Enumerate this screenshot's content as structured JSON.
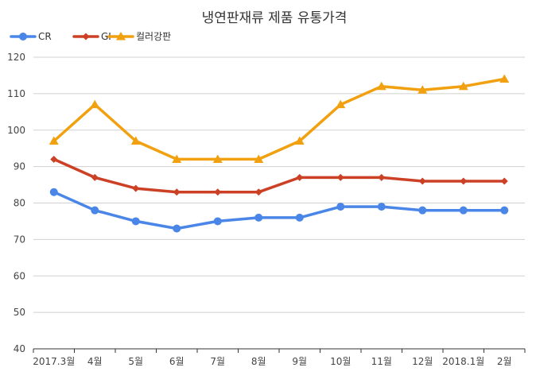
{
  "chart_data": {
    "type": "line",
    "title": "냉연판재류 제품 유통가격",
    "categories": [
      "2017.3월",
      "4월",
      "5월",
      "6월",
      "7월",
      "8월",
      "9월",
      "10월",
      "11월",
      "12월",
      "2018.1월",
      "2월"
    ],
    "series": [
      {
        "name": "CR",
        "color": "#4a86e8",
        "marker": "circle",
        "values": [
          83,
          78,
          75,
          73,
          75,
          76,
          76,
          79,
          79,
          78,
          78,
          78
        ]
      },
      {
        "name": "GI",
        "color": "#cc4125",
        "marker": "diamond",
        "values": [
          92,
          87,
          84,
          83,
          83,
          83,
          87,
          87,
          87,
          86,
          86,
          86
        ]
      },
      {
        "name": "컬러강판",
        "color": "#f1a10f",
        "marker": "triangle",
        "values": [
          97,
          107,
          97,
          92,
          92,
          92,
          97,
          107,
          112,
          111,
          112,
          114
        ]
      }
    ],
    "ylim": [
      40,
      120
    ],
    "yticks": [
      40,
      50,
      60,
      70,
      80,
      90,
      100,
      110,
      120
    ],
    "grid": true,
    "legend_position": "top-left",
    "xlabel": "",
    "ylabel": ""
  }
}
